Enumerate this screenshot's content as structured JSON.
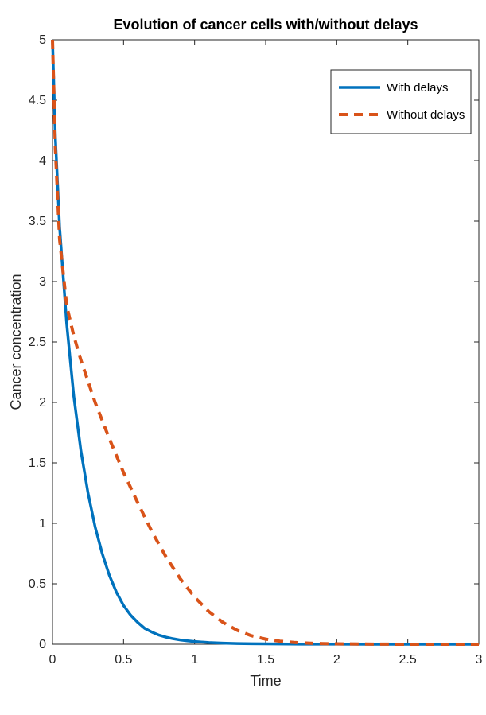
{
  "chart_data": {
    "type": "line",
    "title": "Evolution of cancer cells with/without delays",
    "xlabel": "Time",
    "ylabel": "Cancer concentration",
    "xlim": [
      0,
      3
    ],
    "ylim": [
      0,
      5
    ],
    "xticks": [
      "0",
      "0.5",
      "1",
      "1.5",
      "2",
      "2.5",
      "3"
    ],
    "yticks": [
      "0",
      "0.5",
      "1",
      "1.5",
      "2",
      "2.5",
      "3",
      "3.5",
      "4",
      "4.5",
      "5"
    ],
    "grid": false,
    "legend_position": "top-right",
    "series": [
      {
        "name": "With delays",
        "color": "#0072BD",
        "line_style": "solid",
        "x": [
          0,
          0.02,
          0.05,
          0.1,
          0.15,
          0.2,
          0.25,
          0.3,
          0.35,
          0.4,
          0.45,
          0.5,
          0.55,
          0.6,
          0.65,
          0.7,
          0.75,
          0.8,
          0.85,
          0.9,
          0.95,
          1.0,
          1.1,
          1.2,
          1.3,
          1.4,
          1.5,
          1.75,
          2.0,
          2.25,
          2.5,
          2.75,
          3.0
        ],
        "values": [
          5.0,
          4.2,
          3.45,
          2.65,
          2.05,
          1.6,
          1.25,
          0.97,
          0.75,
          0.57,
          0.43,
          0.32,
          0.24,
          0.18,
          0.13,
          0.1,
          0.075,
          0.058,
          0.045,
          0.035,
          0.028,
          0.022,
          0.014,
          0.009,
          0.006,
          0.004,
          0.003,
          0.001,
          0.0005,
          0.0,
          0.0,
          0.0,
          0.0
        ]
      },
      {
        "name": "Without delays",
        "color": "#D95319",
        "line_style": "dashed",
        "x": [
          0,
          0.02,
          0.05,
          0.1,
          0.15,
          0.2,
          0.3,
          0.4,
          0.5,
          0.6,
          0.7,
          0.8,
          0.9,
          1.0,
          1.1,
          1.2,
          1.3,
          1.4,
          1.5,
          1.6,
          1.7,
          1.8,
          1.9,
          2.0,
          2.25,
          2.5,
          2.75,
          3.0
        ],
        "values": [
          5.0,
          4.1,
          3.35,
          2.8,
          2.55,
          2.35,
          2.0,
          1.7,
          1.42,
          1.17,
          0.93,
          0.72,
          0.54,
          0.39,
          0.27,
          0.18,
          0.115,
          0.07,
          0.042,
          0.025,
          0.015,
          0.009,
          0.005,
          0.003,
          0.001,
          0.0,
          0.0,
          0.0
        ]
      }
    ]
  },
  "colors": {
    "axis": "#262626",
    "background": "#ffffff"
  }
}
